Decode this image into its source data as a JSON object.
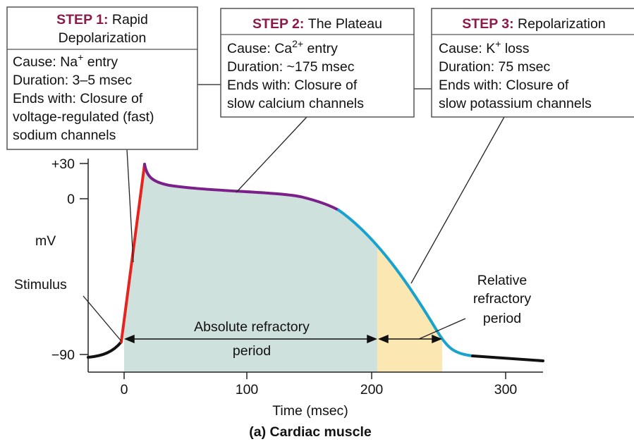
{
  "steps": [
    {
      "label": "STEP 1:",
      "title_lines": [
        "Rapid",
        "Depolarization"
      ],
      "cause": {
        "prefix": "Cause: Na",
        "sup": "+",
        "suffix": " entry"
      },
      "duration": "Duration: 3–5 msec",
      "ends_lines": [
        "Ends with: Closure of",
        "voltage-regulated (fast)",
        "sodium channels"
      ]
    },
    {
      "label": "STEP 2:",
      "title_lines": [
        "The Plateau"
      ],
      "cause": {
        "prefix": "Cause: Ca",
        "sup": "2+",
        "suffix": " entry"
      },
      "duration": "Duration: ~175 msec",
      "ends_lines": [
        "Ends with: Closure of",
        "slow calcium channels"
      ]
    },
    {
      "label": "STEP 3:",
      "title_lines": [
        "Repolarization"
      ],
      "cause": {
        "prefix": "Cause: K",
        "sup": "+",
        "suffix": " loss"
      },
      "duration": "Duration: 75 msec",
      "ends_lines": [
        "Ends with: Closure of",
        "slow potassium channels"
      ]
    }
  ],
  "y_axis": {
    "label": "mV",
    "ticks": [
      "+30",
      "0",
      "−90"
    ]
  },
  "x_axis": {
    "label": "Time (msec)",
    "ticks": [
      "0",
      "100",
      "200",
      "300"
    ]
  },
  "annotations": {
    "stimulus": "Stimulus",
    "absolute": [
      "Absolute refractory",
      "period"
    ],
    "relative": [
      "Relative",
      "refractory",
      "period"
    ]
  },
  "caption": "(a) Cardiac muscle"
}
